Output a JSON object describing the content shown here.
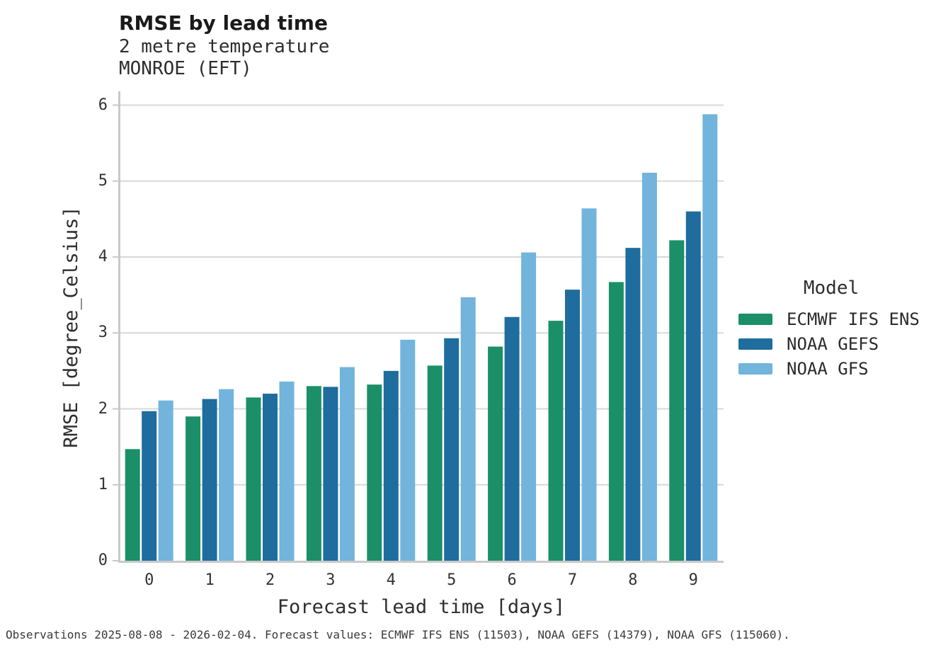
{
  "header": {
    "title": "RMSE by lead time",
    "subtitle": "2 metre temperature",
    "station": "MONROE (EFT)"
  },
  "legend": {
    "title": "Model"
  },
  "footer": {
    "text": "Observations 2025-08-08 - 2026-02-04. Forecast values: ECMWF IFS ENS (11503), NOAA GEFS (14379), NOAA GFS (115060)."
  },
  "colors": {
    "ecmwf_green": "#1b8f68",
    "gefs_dark_blue": "#1e6d9e",
    "gfs_light_blue": "#72b4dc",
    "gridline": "#d8d8d8",
    "spine": "#c9c9c9",
    "text": "#2e2e2e"
  },
  "chart_data": {
    "type": "bar",
    "title": "RMSE by lead time",
    "subtitle": "2 metre temperature",
    "annotation": "MONROE (EFT)",
    "xlabel": "Forecast lead time [days]",
    "ylabel": "RMSE [degree_Celsius]",
    "categories": [
      "0",
      "1",
      "2",
      "3",
      "4",
      "5",
      "6",
      "7",
      "8",
      "9"
    ],
    "series": [
      {
        "name": "ECMWF IFS ENS",
        "color": "#1b8f68",
        "values": [
          1.47,
          1.9,
          2.15,
          2.3,
          2.32,
          2.57,
          2.82,
          3.16,
          3.67,
          4.22
        ]
      },
      {
        "name": "NOAA GEFS",
        "color": "#1e6d9e",
        "values": [
          1.97,
          2.13,
          2.2,
          2.29,
          2.5,
          2.93,
          3.21,
          3.57,
          4.12,
          4.6
        ]
      },
      {
        "name": "NOAA GFS",
        "color": "#72b4dc",
        "values": [
          2.11,
          2.26,
          2.36,
          2.55,
          2.91,
          3.47,
          4.06,
          4.64,
          5.11,
          5.88
        ]
      }
    ],
    "ylim": [
      0,
      6.18
    ],
    "yticks": [
      0,
      1,
      2,
      3,
      4,
      5,
      6
    ],
    "grid": "horizontal",
    "legend_position": "right",
    "legend_title": "Model"
  }
}
